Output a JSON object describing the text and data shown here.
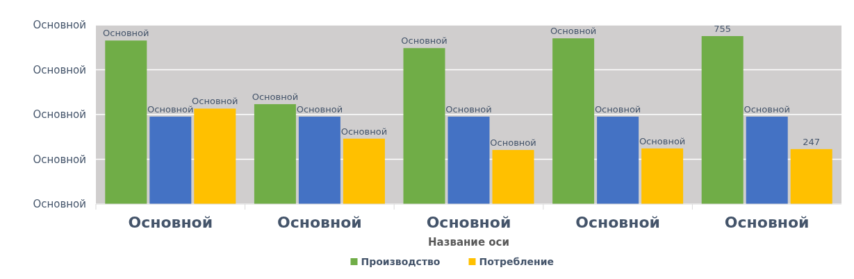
{
  "chart_data": {
    "type": "bar",
    "xlabel": "Название оси",
    "categories": [
      "Основной",
      "Основной",
      "Основной",
      "Основной",
      "Основной"
    ],
    "series": [
      {
        "name": "Производство",
        "color": "#70ad47",
        "values": [
          735,
          449,
          701,
          745,
          755
        ],
        "value_labels": [
          "Основной",
          "Основной",
          "Основной",
          "Основной",
          "755"
        ]
      },
      {
        "color": "#4472c4",
        "values": [
          393,
          393,
          393,
          393,
          393
        ],
        "value_labels": [
          "Основной",
          "Основной",
          "Основной",
          "Основной",
          "Основной"
        ]
      },
      {
        "name": "Потребление",
        "color": "#ffc000",
        "values": [
          429,
          294,
          243,
          250,
          247
        ],
        "value_labels": [
          "Основной",
          "Основной",
          "Основной",
          "Основной",
          "247"
        ]
      }
    ],
    "annotations": [
      "Основной",
      "Основной",
      "Основной",
      "Основной",
      "Основной"
    ],
    "grid": "y",
    "legend": "bottom"
  }
}
